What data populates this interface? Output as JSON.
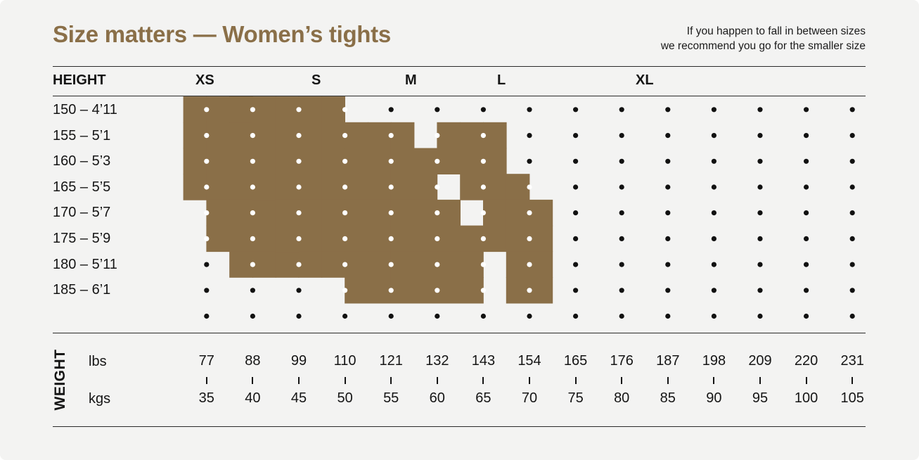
{
  "title": "Size matters — Women’s tights",
  "note": {
    "line1": "If you happen to fall in between sizes",
    "line2": "we recommend you go for the smaller size"
  },
  "colors": {
    "accent": "#8a6f48",
    "background": "#f3f3f2",
    "text": "#151515"
  },
  "chart_data": {
    "type": "heatmap",
    "ylabel": "HEIGHT",
    "xlabel": "WEIGHT",
    "sizes": [
      "XS",
      "S",
      "M",
      "L",
      "XL"
    ],
    "heights": [
      "150 – 4’11",
      "155 – 5’1",
      "160 – 5’3",
      "165 – 5’5",
      "170 – 5’7",
      "175 – 5’9",
      "180 – 5’11",
      "185 – 6’1",
      ""
    ],
    "weight_lbs": [
      "77",
      "88",
      "99",
      "110",
      "121",
      "132",
      "143",
      "154",
      "165",
      "176",
      "187",
      "198",
      "209",
      "220",
      "231"
    ],
    "weight_kgs": [
      "35",
      "40",
      "45",
      "50",
      "55",
      "60",
      "65",
      "70",
      "75",
      "80",
      "85",
      "90",
      "95",
      "100",
      "105"
    ],
    "unit_lbs": "lbs",
    "unit_kgs": "kgs",
    "regions": [
      {
        "size": "XS",
        "cells": [
          [
            0,
            0
          ],
          [
            1,
            0
          ],
          [
            2,
            0
          ],
          [
            0,
            1
          ],
          [
            1,
            1
          ],
          [
            2,
            1
          ],
          [
            0,
            2
          ],
          [
            1,
            2
          ],
          [
            2,
            2
          ],
          [
            0,
            3
          ],
          [
            1,
            3
          ],
          [
            2,
            3
          ],
          [
            1,
            4
          ],
          [
            2,
            4
          ],
          [
            3,
            4
          ],
          [
            1,
            5
          ],
          [
            2,
            5
          ],
          [
            3,
            5
          ],
          [
            2,
            6
          ],
          [
            3,
            6
          ],
          [
            4,
            6
          ]
        ]
      },
      {
        "size": "S",
        "cells": [
          [
            2,
            0
          ],
          [
            3,
            0
          ],
          [
            4,
            0
          ],
          [
            3,
            1
          ],
          [
            4,
            1
          ],
          [
            3,
            2
          ],
          [
            4,
            2
          ],
          [
            3,
            3
          ],
          [
            4,
            3
          ],
          [
            4,
            4
          ],
          [
            4,
            5
          ]
        ]
      },
      {
        "size": "M",
        "cells": [
          [
            5,
            0
          ],
          [
            6,
            0
          ],
          [
            5,
            1
          ],
          [
            6,
            1
          ],
          [
            5,
            2
          ],
          [
            6,
            2
          ],
          [
            7,
            2
          ],
          [
            5,
            3
          ],
          [
            6,
            3
          ],
          [
            7,
            3
          ],
          [
            5,
            4
          ],
          [
            6,
            4
          ],
          [
            7,
            4
          ],
          [
            5,
            5
          ],
          [
            6,
            5
          ],
          [
            7,
            5
          ],
          [
            8,
            5
          ],
          [
            5,
            6
          ],
          [
            6,
            6
          ],
          [
            7,
            6
          ],
          [
            8,
            6
          ],
          [
            7,
            7
          ],
          [
            8,
            7
          ]
        ]
      },
      {
        "size": "L",
        "cells": [
          [
            7,
            1
          ],
          [
            8,
            1
          ],
          [
            9,
            1
          ],
          [
            8,
            2
          ],
          [
            9,
            2
          ],
          [
            10,
            2
          ],
          [
            8,
            3
          ],
          [
            9,
            3
          ],
          [
            10,
            3
          ],
          [
            8,
            4
          ],
          [
            9,
            4
          ],
          [
            10,
            4
          ],
          [
            11,
            4
          ],
          [
            9,
            5
          ],
          [
            10,
            5
          ],
          [
            11,
            5
          ],
          [
            12,
            5
          ],
          [
            9,
            6
          ],
          [
            10,
            6
          ],
          [
            11,
            6
          ],
          [
            12,
            6
          ],
          [
            9,
            7
          ],
          [
            10,
            7
          ],
          [
            11,
            7
          ],
          [
            12,
            7
          ]
        ]
      },
      {
        "size": "XL",
        "cells": [
          [
            11,
            1
          ],
          [
            12,
            1
          ],
          [
            13,
            1
          ],
          [
            11,
            2
          ],
          [
            12,
            2
          ],
          [
            13,
            2
          ],
          [
            12,
            3
          ],
          [
            13,
            3
          ],
          [
            14,
            3
          ],
          [
            13,
            4
          ],
          [
            14,
            4
          ],
          [
            15,
            4
          ],
          [
            13,
            5
          ],
          [
            14,
            5
          ],
          [
            15,
            5
          ],
          [
            14,
            6
          ],
          [
            15,
            6
          ],
          [
            14,
            7
          ],
          [
            15,
            7
          ]
        ]
      }
    ]
  }
}
